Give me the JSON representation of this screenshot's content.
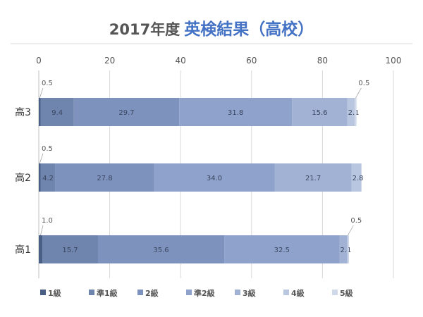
{
  "title": {
    "year_part": "2017年度",
    "main_part": "英検結果（高校）"
  },
  "colors": {
    "series": [
      "#4a5f86",
      "#6f85ad",
      "#7d92bd",
      "#8ea2cb",
      "#a1b2d4",
      "#b9c6df",
      "#d0d9ea"
    ],
    "title_accent": "#4472c4",
    "axis_text": "#555555",
    "grid": "#d9d9d9"
  },
  "chart_data": {
    "type": "bar",
    "orientation": "horizontal",
    "stacked": true,
    "categories": [
      "高3",
      "高2",
      "高1"
    ],
    "series": [
      {
        "name": "1級",
        "values": [
          0.5,
          0.5,
          1.0
        ]
      },
      {
        "name": "準1級",
        "values": [
          9.4,
          4.2,
          15.7
        ]
      },
      {
        "name": "2級",
        "values": [
          29.7,
          27.8,
          35.6
        ]
      },
      {
        "name": "準2級",
        "values": [
          31.8,
          34.0,
          32.5
        ]
      },
      {
        "name": "3級",
        "values": [
          15.6,
          21.7,
          2.1
        ]
      },
      {
        "name": "4級",
        "values": [
          2.1,
          2.8,
          0.5
        ]
      },
      {
        "name": "5級",
        "values": [
          0.5,
          0,
          0
        ]
      }
    ],
    "data_labels": [
      [
        "0.5",
        "9.4",
        "29.7",
        "31.8",
        "15.6",
        "2.1",
        "0.5"
      ],
      [
        "0.5",
        "4.2",
        "27.8",
        "34.0",
        "21.7",
        "2.8",
        ""
      ],
      [
        "1.0",
        "15.7",
        "35.6",
        "32.5",
        "2.1",
        "0.5",
        ""
      ]
    ],
    "xlim": [
      0,
      100
    ],
    "xticks": [
      "0",
      "20",
      "40",
      "60",
      "80",
      "100"
    ],
    "grid": true,
    "legend_position": "bottom"
  }
}
